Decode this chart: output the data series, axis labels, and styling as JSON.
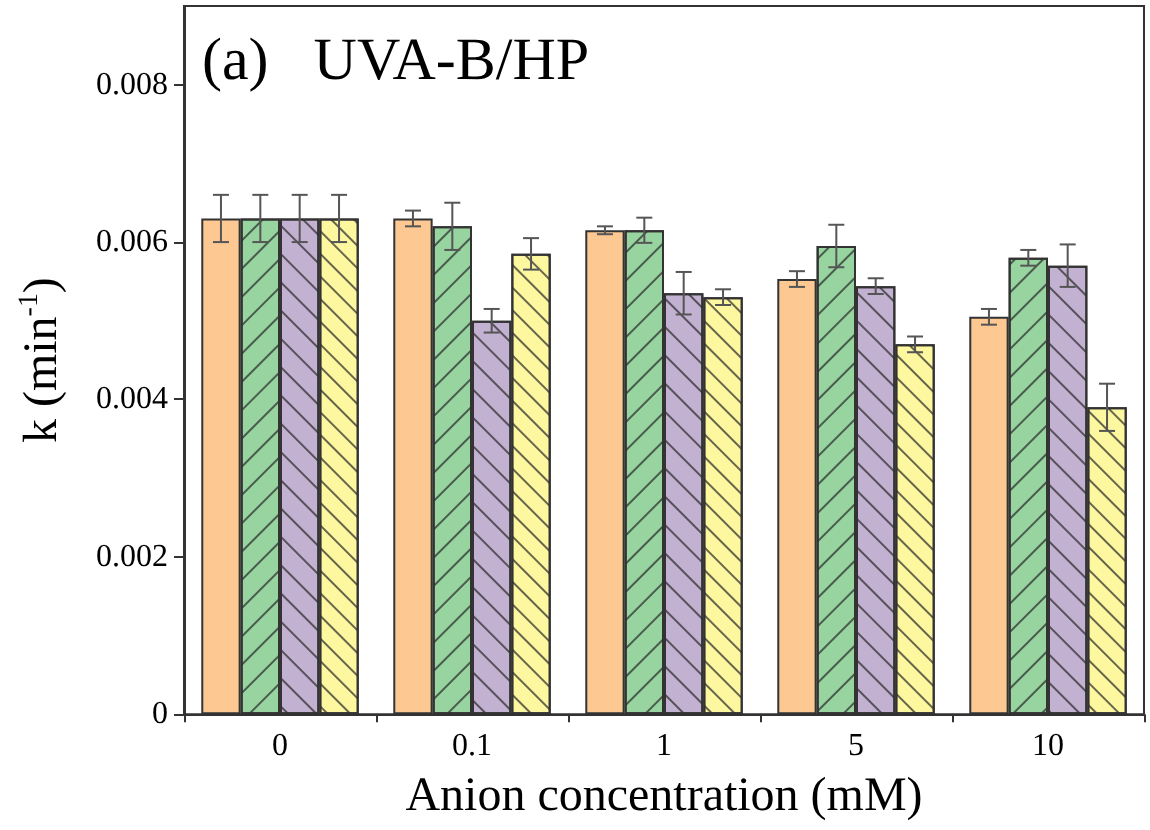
{
  "chart_data": {
    "type": "bar",
    "title": "(a)   UVA-B/HP",
    "xlabel": "Anion concentration (mM)",
    "ylabel": "k (min$^{-1}$)",
    "categories": [
      "0",
      "0.1",
      "1",
      "5",
      "10"
    ],
    "series": [
      {
        "color": "#fdc891",
        "values": [
          0.0063,
          0.0063,
          0.00615,
          0.00553,
          0.00505
        ],
        "errors": [
          0.0003,
          0.0001,
          5e-05,
          0.0001,
          0.0001
        ]
      },
      {
        "color": "#98d4a0",
        "values": [
          0.0063,
          0.0062,
          0.00615,
          0.00595,
          0.0058
        ],
        "errors": [
          0.0003,
          0.0003,
          0.00016,
          0.00027,
          0.0001
        ]
      },
      {
        "color": "#c3b1d2",
        "values": [
          0.0063,
          0.005,
          0.00535,
          0.00544,
          0.0057
        ],
        "errors": [
          0.0003,
          0.00015,
          0.00027,
          0.0001,
          0.00027
        ]
      },
      {
        "color": "#fdf79f",
        "values": [
          0.0063,
          0.00585,
          0.0053,
          0.0047,
          0.0039
        ],
        "errors": [
          0.0003,
          0.0002,
          0.0001,
          0.0001,
          0.0003
        ]
      }
    ],
    "ylim": [
      0,
      0.009
    ],
    "yticks": [
      0,
      0.002,
      0.004,
      0.006,
      0.008
    ],
    "grid": false
  }
}
